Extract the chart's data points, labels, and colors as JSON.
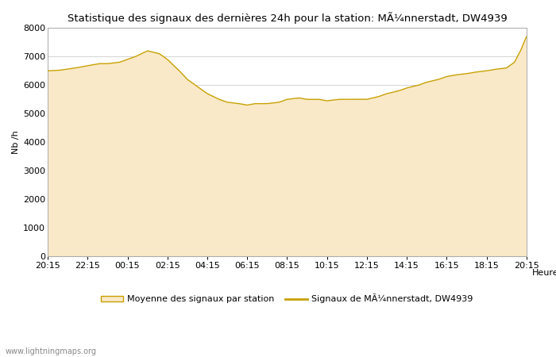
{
  "title": "Statistique des signaux des dernières 24h pour la station: MÃ¼nnerstadt, DW4939",
  "xlabel": "Heure",
  "ylabel": "Nb /h",
  "ylim": [
    0,
    8000
  ],
  "yticks": [
    0,
    1000,
    2000,
    3000,
    4000,
    5000,
    6000,
    7000,
    8000
  ],
  "xtick_labels": [
    "20:15",
    "22:15",
    "00:15",
    "02:15",
    "04:15",
    "06:15",
    "08:15",
    "10:15",
    "12:15",
    "14:15",
    "16:15",
    "18:15",
    "20:15"
  ],
  "fill_color": "#FAE9C8",
  "fill_edge_color": "#E8C87A",
  "line_color": "#C8A000",
  "background_color": "#ffffff",
  "grid_color": "#cccccc",
  "legend_label_fill": "Moyenne des signaux par station",
  "legend_label_line": "Signaux de MÃ¼nnerstadt, DW4939",
  "watermark": "www.lightningmaps.org",
  "ctrl_x": [
    0,
    0.3,
    0.7,
    1.0,
    1.3,
    1.5,
    1.8,
    2.0,
    2.2,
    2.5,
    2.8,
    3.0,
    3.3,
    3.5,
    3.8,
    4.0,
    4.3,
    4.5,
    4.8,
    5.0,
    5.2,
    5.5,
    5.8,
    6.0,
    6.3,
    6.5,
    6.8,
    7.0,
    7.3,
    7.5,
    7.8,
    8.0,
    8.3,
    8.5,
    8.8,
    9.0,
    9.3,
    9.5,
    9.8,
    10.0,
    10.2,
    10.5,
    10.7,
    11.0,
    11.2,
    11.5,
    11.7,
    11.85,
    12.0
  ],
  "ctrl_y": [
    6500,
    6520,
    6600,
    6680,
    6750,
    6750,
    6800,
    6900,
    7000,
    7200,
    7100,
    6900,
    6500,
    6200,
    5900,
    5700,
    5500,
    5400,
    5350,
    5300,
    5350,
    5350,
    5400,
    5500,
    5550,
    5500,
    5500,
    5450,
    5500,
    5500,
    5500,
    5500,
    5600,
    5700,
    5800,
    5900,
    6000,
    6100,
    6200,
    6300,
    6350,
    6400,
    6450,
    6500,
    6550,
    6600,
    6800,
    7200,
    7700
  ]
}
